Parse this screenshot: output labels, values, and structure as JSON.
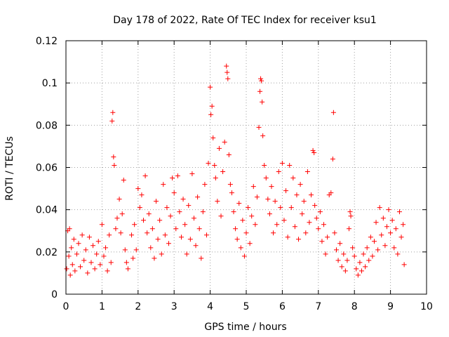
{
  "chart_data": {
    "type": "scatter",
    "title": "Day 178 of 2022, Rate Of TEC Index for receiver ksu1",
    "xlabel": "GPS time / hours",
    "ylabel": "ROTI / TECUs",
    "xlim": [
      0,
      10
    ],
    "ylim": [
      0,
      0.12
    ],
    "xticks": [
      0,
      1,
      2,
      3,
      4,
      5,
      6,
      7,
      8,
      9,
      10
    ],
    "xtick_labels": [
      "0",
      "1",
      "2",
      "3",
      "4",
      "5",
      "6",
      "7",
      "8",
      "9",
      "10"
    ],
    "yticks": [
      0,
      0.02,
      0.04,
      0.06,
      0.08,
      0.1,
      0.12
    ],
    "ytick_labels": [
      "0",
      "0.02",
      "0.04",
      "0.06",
      "0.08",
      "0.1",
      "0.12"
    ],
    "grid": true,
    "marker": "+",
    "color": "#ff0000",
    "series": [
      {
        "name": "ROTI",
        "points": [
          [
            0.02,
            0.012
          ],
          [
            0.05,
            0.03
          ],
          [
            0.08,
            0.018
          ],
          [
            0.1,
            0.031
          ],
          [
            0.12,
            0.009
          ],
          [
            0.15,
            0.022
          ],
          [
            0.18,
            0.014
          ],
          [
            0.22,
            0.026
          ],
          [
            0.25,
            0.011
          ],
          [
            0.3,
            0.019
          ],
          [
            0.35,
            0.024
          ],
          [
            0.4,
            0.013
          ],
          [
            0.45,
            0.028
          ],
          [
            0.5,
            0.016
          ],
          [
            0.55,
            0.021
          ],
          [
            0.6,
            0.01
          ],
          [
            0.65,
            0.027
          ],
          [
            0.7,
            0.015
          ],
          [
            0.75,
            0.023
          ],
          [
            0.8,
            0.012
          ],
          [
            0.85,
            0.019
          ],
          [
            0.9,
            0.025
          ],
          [
            0.95,
            0.014
          ],
          [
            1.0,
            0.033
          ],
          [
            1.05,
            0.018
          ],
          [
            1.1,
            0.022
          ],
          [
            1.15,
            0.011
          ],
          [
            1.2,
            0.028
          ],
          [
            1.25,
            0.015
          ],
          [
            1.28,
            0.082
          ],
          [
            1.3,
            0.086
          ],
          [
            1.32,
            0.065
          ],
          [
            1.34,
            0.061
          ],
          [
            1.38,
            0.031
          ],
          [
            1.42,
            0.036
          ],
          [
            1.48,
            0.045
          ],
          [
            1.52,
            0.029
          ],
          [
            1.56,
            0.038
          ],
          [
            1.6,
            0.054
          ],
          [
            1.64,
            0.021
          ],
          [
            1.68,
            0.015
          ],
          [
            1.72,
            0.012
          ],
          [
            1.82,
            0.028
          ],
          [
            1.86,
            0.017
          ],
          [
            1.9,
            0.033
          ],
          [
            1.95,
            0.021
          ],
          [
            2.0,
            0.05
          ],
          [
            2.05,
            0.041
          ],
          [
            2.1,
            0.047
          ],
          [
            2.15,
            0.035
          ],
          [
            2.2,
            0.056
          ],
          [
            2.25,
            0.029
          ],
          [
            2.3,
            0.038
          ],
          [
            2.35,
            0.022
          ],
          [
            2.4,
            0.031
          ],
          [
            2.45,
            0.017
          ],
          [
            2.5,
            0.044
          ],
          [
            2.55,
            0.026
          ],
          [
            2.6,
            0.035
          ],
          [
            2.65,
            0.019
          ],
          [
            2.7,
            0.052
          ],
          [
            2.75,
            0.028
          ],
          [
            2.8,
            0.041
          ],
          [
            2.85,
            0.024
          ],
          [
            2.9,
            0.037
          ],
          [
            2.95,
            0.055
          ],
          [
            3.0,
            0.048
          ],
          [
            3.05,
            0.031
          ],
          [
            3.1,
            0.056
          ],
          [
            3.15,
            0.039
          ],
          [
            3.2,
            0.027
          ],
          [
            3.25,
            0.045
          ],
          [
            3.3,
            0.033
          ],
          [
            3.35,
            0.019
          ],
          [
            3.4,
            0.042
          ],
          [
            3.45,
            0.026
          ],
          [
            3.5,
            0.057
          ],
          [
            3.55,
            0.036
          ],
          [
            3.6,
            0.023
          ],
          [
            3.65,
            0.046
          ],
          [
            3.7,
            0.031
          ],
          [
            3.75,
            0.017
          ],
          [
            3.8,
            0.039
          ],
          [
            3.85,
            0.052
          ],
          [
            3.9,
            0.028
          ],
          [
            3.95,
            0.062
          ],
          [
            4.0,
            0.098
          ],
          [
            4.02,
            0.085
          ],
          [
            4.05,
            0.089
          ],
          [
            4.08,
            0.074
          ],
          [
            4.12,
            0.061
          ],
          [
            4.15,
            0.055
          ],
          [
            4.2,
            0.044
          ],
          [
            4.25,
            0.069
          ],
          [
            4.3,
            0.037
          ],
          [
            4.35,
            0.058
          ],
          [
            4.4,
            0.072
          ],
          [
            4.45,
            0.108
          ],
          [
            4.47,
            0.105
          ],
          [
            4.49,
            0.102
          ],
          [
            4.52,
            0.066
          ],
          [
            4.56,
            0.052
          ],
          [
            4.6,
            0.048
          ],
          [
            4.65,
            0.039
          ],
          [
            4.7,
            0.031
          ],
          [
            4.75,
            0.026
          ],
          [
            4.8,
            0.043
          ],
          [
            4.85,
            0.022
          ],
          [
            4.9,
            0.035
          ],
          [
            4.95,
            0.018
          ],
          [
            5.0,
            0.029
          ],
          [
            5.05,
            0.041
          ],
          [
            5.1,
            0.024
          ],
          [
            5.15,
            0.037
          ],
          [
            5.2,
            0.051
          ],
          [
            5.25,
            0.033
          ],
          [
            5.3,
            0.046
          ],
          [
            5.35,
            0.079
          ],
          [
            5.38,
            0.096
          ],
          [
            5.4,
            0.102
          ],
          [
            5.42,
            0.101
          ],
          [
            5.44,
            0.091
          ],
          [
            5.46,
            0.075
          ],
          [
            5.5,
            0.061
          ],
          [
            5.55,
            0.055
          ],
          [
            5.6,
            0.045
          ],
          [
            5.65,
            0.038
          ],
          [
            5.7,
            0.051
          ],
          [
            5.75,
            0.029
          ],
          [
            5.8,
            0.044
          ],
          [
            5.85,
            0.033
          ],
          [
            5.9,
            0.058
          ],
          [
            5.95,
            0.041
          ],
          [
            6.0,
            0.062
          ],
          [
            6.05,
            0.035
          ],
          [
            6.1,
            0.049
          ],
          [
            6.15,
            0.027
          ],
          [
            6.2,
            0.061
          ],
          [
            6.25,
            0.041
          ],
          [
            6.3,
            0.055
          ],
          [
            6.35,
            0.032
          ],
          [
            6.4,
            0.047
          ],
          [
            6.45,
            0.026
          ],
          [
            6.5,
            0.052
          ],
          [
            6.55,
            0.038
          ],
          [
            6.6,
            0.044
          ],
          [
            6.65,
            0.029
          ],
          [
            6.7,
            0.058
          ],
          [
            6.75,
            0.034
          ],
          [
            6.8,
            0.047
          ],
          [
            6.85,
            0.068
          ],
          [
            6.88,
            0.067
          ],
          [
            6.9,
            0.042
          ],
          [
            6.95,
            0.036
          ],
          [
            7.0,
            0.031
          ],
          [
            7.05,
            0.039
          ],
          [
            7.1,
            0.025
          ],
          [
            7.15,
            0.033
          ],
          [
            7.2,
            0.019
          ],
          [
            7.25,
            0.027
          ],
          [
            7.3,
            0.047
          ],
          [
            7.35,
            0.048
          ],
          [
            7.4,
            0.064
          ],
          [
            7.42,
            0.086
          ],
          [
            7.45,
            0.029
          ],
          [
            7.5,
            0.021
          ],
          [
            7.55,
            0.016
          ],
          [
            7.6,
            0.024
          ],
          [
            7.65,
            0.013
          ],
          [
            7.7,
            0.019
          ],
          [
            7.75,
            0.011
          ],
          [
            7.8,
            0.016
          ],
          [
            7.85,
            0.031
          ],
          [
            7.88,
            0.039
          ],
          [
            7.9,
            0.037
          ],
          [
            7.95,
            0.022
          ],
          [
            8.0,
            0.018
          ],
          [
            8.05,
            0.012
          ],
          [
            8.1,
            0.009
          ],
          [
            8.15,
            0.015
          ],
          [
            8.2,
            0.011
          ],
          [
            8.25,
            0.019
          ],
          [
            8.3,
            0.013
          ],
          [
            8.35,
            0.022
          ],
          [
            8.4,
            0.016
          ],
          [
            8.45,
            0.027
          ],
          [
            8.5,
            0.018
          ],
          [
            8.55,
            0.025
          ],
          [
            8.6,
            0.034
          ],
          [
            8.65,
            0.021
          ],
          [
            8.7,
            0.041
          ],
          [
            8.75,
            0.028
          ],
          [
            8.8,
            0.036
          ],
          [
            8.85,
            0.023
          ],
          [
            8.9,
            0.032
          ],
          [
            8.95,
            0.04
          ],
          [
            9.0,
            0.029
          ],
          [
            9.05,
            0.035
          ],
          [
            9.1,
            0.022
          ],
          [
            9.15,
            0.031
          ],
          [
            9.2,
            0.019
          ],
          [
            9.25,
            0.039
          ],
          [
            9.3,
            0.027
          ],
          [
            9.35,
            0.033
          ],
          [
            9.38,
            0.014
          ]
        ]
      }
    ]
  }
}
